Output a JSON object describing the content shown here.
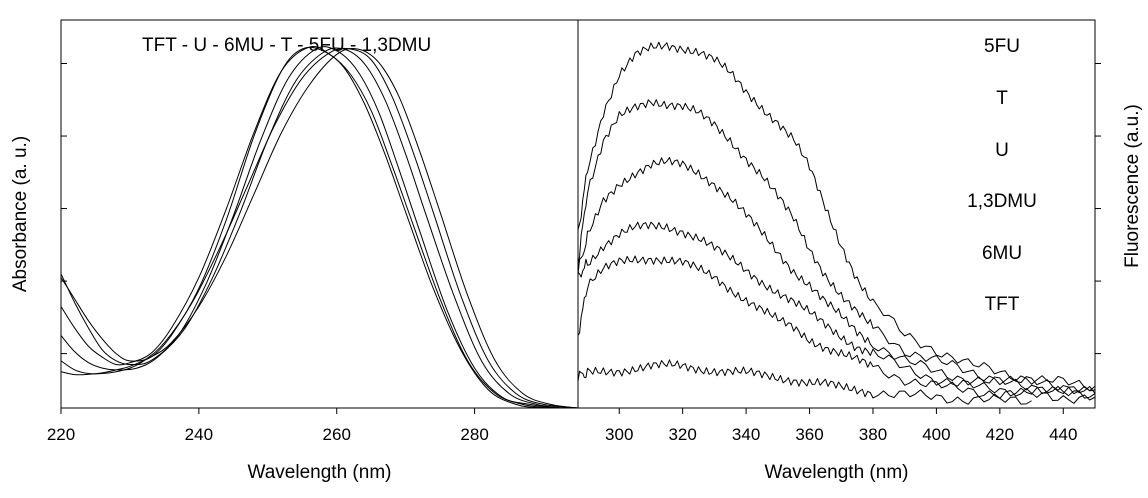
{
  "chart_data": [
    {
      "type": "line",
      "panel": "left",
      "title": "",
      "annotation": "TFT - U - 6MU - T - 5FU - 1,3DMU",
      "xlabel": "Wavelength (nm)",
      "ylabel": "Absorbance (a. u.)",
      "xlim": [
        220,
        295
      ],
      "ylim": [
        0,
        1.07
      ],
      "xticks": [
        220,
        240,
        260,
        280
      ],
      "xtick_labels": [
        "220",
        "240",
        "260",
        "280"
      ],
      "yticks": [
        0.15,
        0.35,
        0.55,
        0.75,
        0.95
      ],
      "y_tick_labels_shown": false,
      "grid": false,
      "series": [
        {
          "x": [
            220,
            222,
            224,
            226,
            228,
            230,
            233,
            236,
            240,
            244,
            248,
            252,
            255,
            258,
            261,
            264,
            267,
            270,
            274,
            278,
            282,
            286,
            290,
            295
          ],
          "y": [
            0.36,
            0.3,
            0.24,
            0.19,
            0.15,
            0.13,
            0.14,
            0.2,
            0.33,
            0.52,
            0.75,
            0.93,
            0.99,
            0.985,
            0.94,
            0.84,
            0.7,
            0.54,
            0.33,
            0.16,
            0.05,
            0.01,
            0.0,
            0.0
          ]
        },
        {
          "x": [
            220,
            222,
            224,
            226,
            228,
            230,
            233,
            236,
            240,
            244,
            248,
            252,
            256,
            259,
            262,
            265,
            268,
            271,
            275,
            279,
            283,
            287,
            291,
            295
          ],
          "y": [
            0.28,
            0.22,
            0.17,
            0.14,
            0.12,
            0.125,
            0.15,
            0.22,
            0.36,
            0.55,
            0.76,
            0.93,
            0.995,
            0.975,
            0.92,
            0.82,
            0.67,
            0.51,
            0.3,
            0.13,
            0.04,
            0.01,
            0.0,
            0.0
          ]
        },
        {
          "x": [
            220,
            222,
            224,
            226,
            228,
            230,
            233,
            237,
            241,
            245,
            249,
            253,
            257,
            260,
            263,
            266,
            269,
            272,
            276,
            280,
            284,
            288,
            292,
            295
          ],
          "y": [
            0.37,
            0.29,
            0.22,
            0.16,
            0.13,
            0.12,
            0.13,
            0.2,
            0.34,
            0.53,
            0.74,
            0.91,
            0.99,
            0.985,
            0.93,
            0.82,
            0.66,
            0.49,
            0.27,
            0.11,
            0.03,
            0.01,
            0.0,
            0.0
          ]
        },
        {
          "x": [
            220,
            222,
            224,
            226,
            228,
            231,
            234,
            238,
            242,
            246,
            250,
            254,
            258,
            261,
            264,
            267,
            270,
            273,
            277,
            281,
            285,
            289,
            293,
            295
          ],
          "y": [
            0.2,
            0.155,
            0.125,
            0.11,
            0.105,
            0.11,
            0.14,
            0.22,
            0.36,
            0.54,
            0.74,
            0.9,
            0.98,
            0.99,
            0.95,
            0.85,
            0.7,
            0.53,
            0.31,
            0.13,
            0.04,
            0.01,
            0.0,
            0.0
          ]
        },
        {
          "x": [
            220,
            222,
            224,
            226,
            228,
            230,
            232,
            235,
            239,
            243,
            247,
            251,
            255,
            259,
            262,
            265,
            268,
            271,
            274,
            278,
            282,
            286,
            290,
            295
          ],
          "y": [
            0.13,
            0.105,
            0.095,
            0.095,
            0.1,
            0.11,
            0.13,
            0.18,
            0.29,
            0.44,
            0.61,
            0.78,
            0.91,
            0.98,
            0.99,
            0.96,
            0.86,
            0.71,
            0.54,
            0.31,
            0.13,
            0.04,
            0.01,
            0.0
          ]
        },
        {
          "x": [
            220,
            222,
            224,
            226,
            228,
            230,
            233,
            236,
            240,
            244,
            248,
            252,
            256,
            260,
            263,
            266,
            269,
            272,
            275,
            279,
            283,
            287,
            291,
            295
          ],
          "y": [
            0.1,
            0.092,
            0.093,
            0.097,
            0.105,
            0.115,
            0.14,
            0.18,
            0.28,
            0.42,
            0.59,
            0.76,
            0.89,
            0.975,
            0.99,
            0.955,
            0.86,
            0.71,
            0.54,
            0.31,
            0.13,
            0.04,
            0.01,
            0.0
          ]
        }
      ]
    },
    {
      "type": "line",
      "panel": "right",
      "title": "",
      "xlabel": "Wavelength (nm)",
      "ylabel": "Fluorescence (a.u.)",
      "xlim": [
        287,
        450
      ],
      "ylim": [
        0,
        1.07
      ],
      "xticks": [
        300,
        320,
        340,
        360,
        380,
        400,
        420,
        440
      ],
      "xtick_labels": [
        "300",
        "320",
        "340",
        "360",
        "380",
        "400",
        "420",
        "440"
      ],
      "yticks": [
        0.15,
        0.35,
        0.55,
        0.75,
        0.95
      ],
      "y_tick_labels_shown": false,
      "grid": false,
      "labels_on_plot": [
        "5FU",
        "T",
        "U",
        "1,3DMU",
        "6MU",
        "TFT"
      ],
      "series": [
        {
          "x": [
            287,
            290,
            295,
            300,
            305,
            310,
            315,
            320,
            325,
            330,
            335,
            340,
            345,
            350,
            355,
            360,
            365,
            370,
            375,
            380,
            390,
            400,
            410,
            420,
            430,
            440,
            450
          ],
          "y": [
            0.48,
            0.66,
            0.82,
            0.92,
            0.97,
            0.99,
            1.0,
            0.995,
            0.985,
            0.96,
            0.92,
            0.87,
            0.83,
            0.79,
            0.74,
            0.66,
            0.55,
            0.45,
            0.36,
            0.29,
            0.2,
            0.16,
            0.12,
            0.1,
            0.08,
            0.07,
            0.06
          ]
        },
        {
          "x": [
            287,
            290,
            295,
            300,
            305,
            310,
            315,
            320,
            325,
            330,
            335,
            340,
            345,
            350,
            355,
            360,
            365,
            370,
            375,
            380,
            390,
            400,
            410,
            420,
            430,
            440,
            450
          ],
          "y": [
            0.4,
            0.6,
            0.73,
            0.8,
            0.83,
            0.85,
            0.84,
            0.83,
            0.81,
            0.78,
            0.74,
            0.69,
            0.64,
            0.58,
            0.52,
            0.44,
            0.37,
            0.31,
            0.26,
            0.22,
            0.16,
            0.13,
            0.1,
            0.08,
            0.07,
            0.06,
            0.05
          ]
        },
        {
          "x": [
            287,
            290,
            295,
            300,
            305,
            310,
            315,
            320,
            325,
            330,
            335,
            340,
            345,
            350,
            355,
            360,
            365,
            370,
            375,
            380,
            390,
            400,
            410,
            420,
            430,
            440,
            450
          ],
          "y": [
            0.38,
            0.47,
            0.57,
            0.62,
            0.65,
            0.67,
            0.675,
            0.67,
            0.65,
            0.62,
            0.58,
            0.53,
            0.48,
            0.43,
            0.38,
            0.34,
            0.29,
            0.25,
            0.21,
            0.18,
            0.13,
            0.1,
            0.08,
            0.07,
            0.06,
            0.05,
            0.04
          ]
        },
        {
          "x": [
            287,
            290,
            295,
            300,
            305,
            310,
            315,
            320,
            325,
            330,
            335,
            340,
            345,
            350,
            355,
            360,
            365,
            370,
            375,
            380,
            390,
            400,
            410,
            420,
            430,
            440,
            450
          ],
          "y": [
            0.36,
            0.4,
            0.45,
            0.48,
            0.495,
            0.5,
            0.5,
            0.49,
            0.47,
            0.44,
            0.41,
            0.38,
            0.35,
            0.32,
            0.29,
            0.26,
            0.23,
            0.2,
            0.17,
            0.15,
            0.11,
            0.08,
            0.06,
            0.05,
            0.05,
            0.04,
            0.04
          ]
        },
        {
          "x": [
            287,
            290,
            295,
            300,
            305,
            310,
            315,
            320,
            325,
            330,
            335,
            340,
            345,
            350,
            355,
            360,
            365,
            370,
            375,
            380,
            390,
            400,
            410,
            420,
            430,
            440,
            450
          ],
          "y": [
            0.2,
            0.34,
            0.38,
            0.4,
            0.41,
            0.415,
            0.41,
            0.4,
            0.38,
            0.36,
            0.33,
            0.3,
            0.27,
            0.24,
            0.22,
            0.19,
            0.17,
            0.15,
            0.13,
            0.11,
            0.08,
            0.06,
            0.05,
            0.04,
            0.035,
            0.03,
            0.03
          ]
        },
        {
          "x": [
            287,
            290,
            295,
            300,
            305,
            310,
            315,
            320,
            325,
            330,
            335,
            340,
            345,
            350,
            355,
            360,
            365,
            370,
            375,
            380,
            390,
            400,
            410,
            420,
            430
          ],
          "y": [
            0.09,
            0.095,
            0.1,
            0.105,
            0.11,
            0.115,
            0.115,
            0.115,
            0.11,
            0.105,
            0.1,
            0.095,
            0.09,
            0.085,
            0.08,
            0.07,
            0.065,
            0.055,
            0.05,
            0.045,
            0.035,
            0.03,
            0.025,
            0.02,
            0.02
          ]
        }
      ]
    }
  ]
}
